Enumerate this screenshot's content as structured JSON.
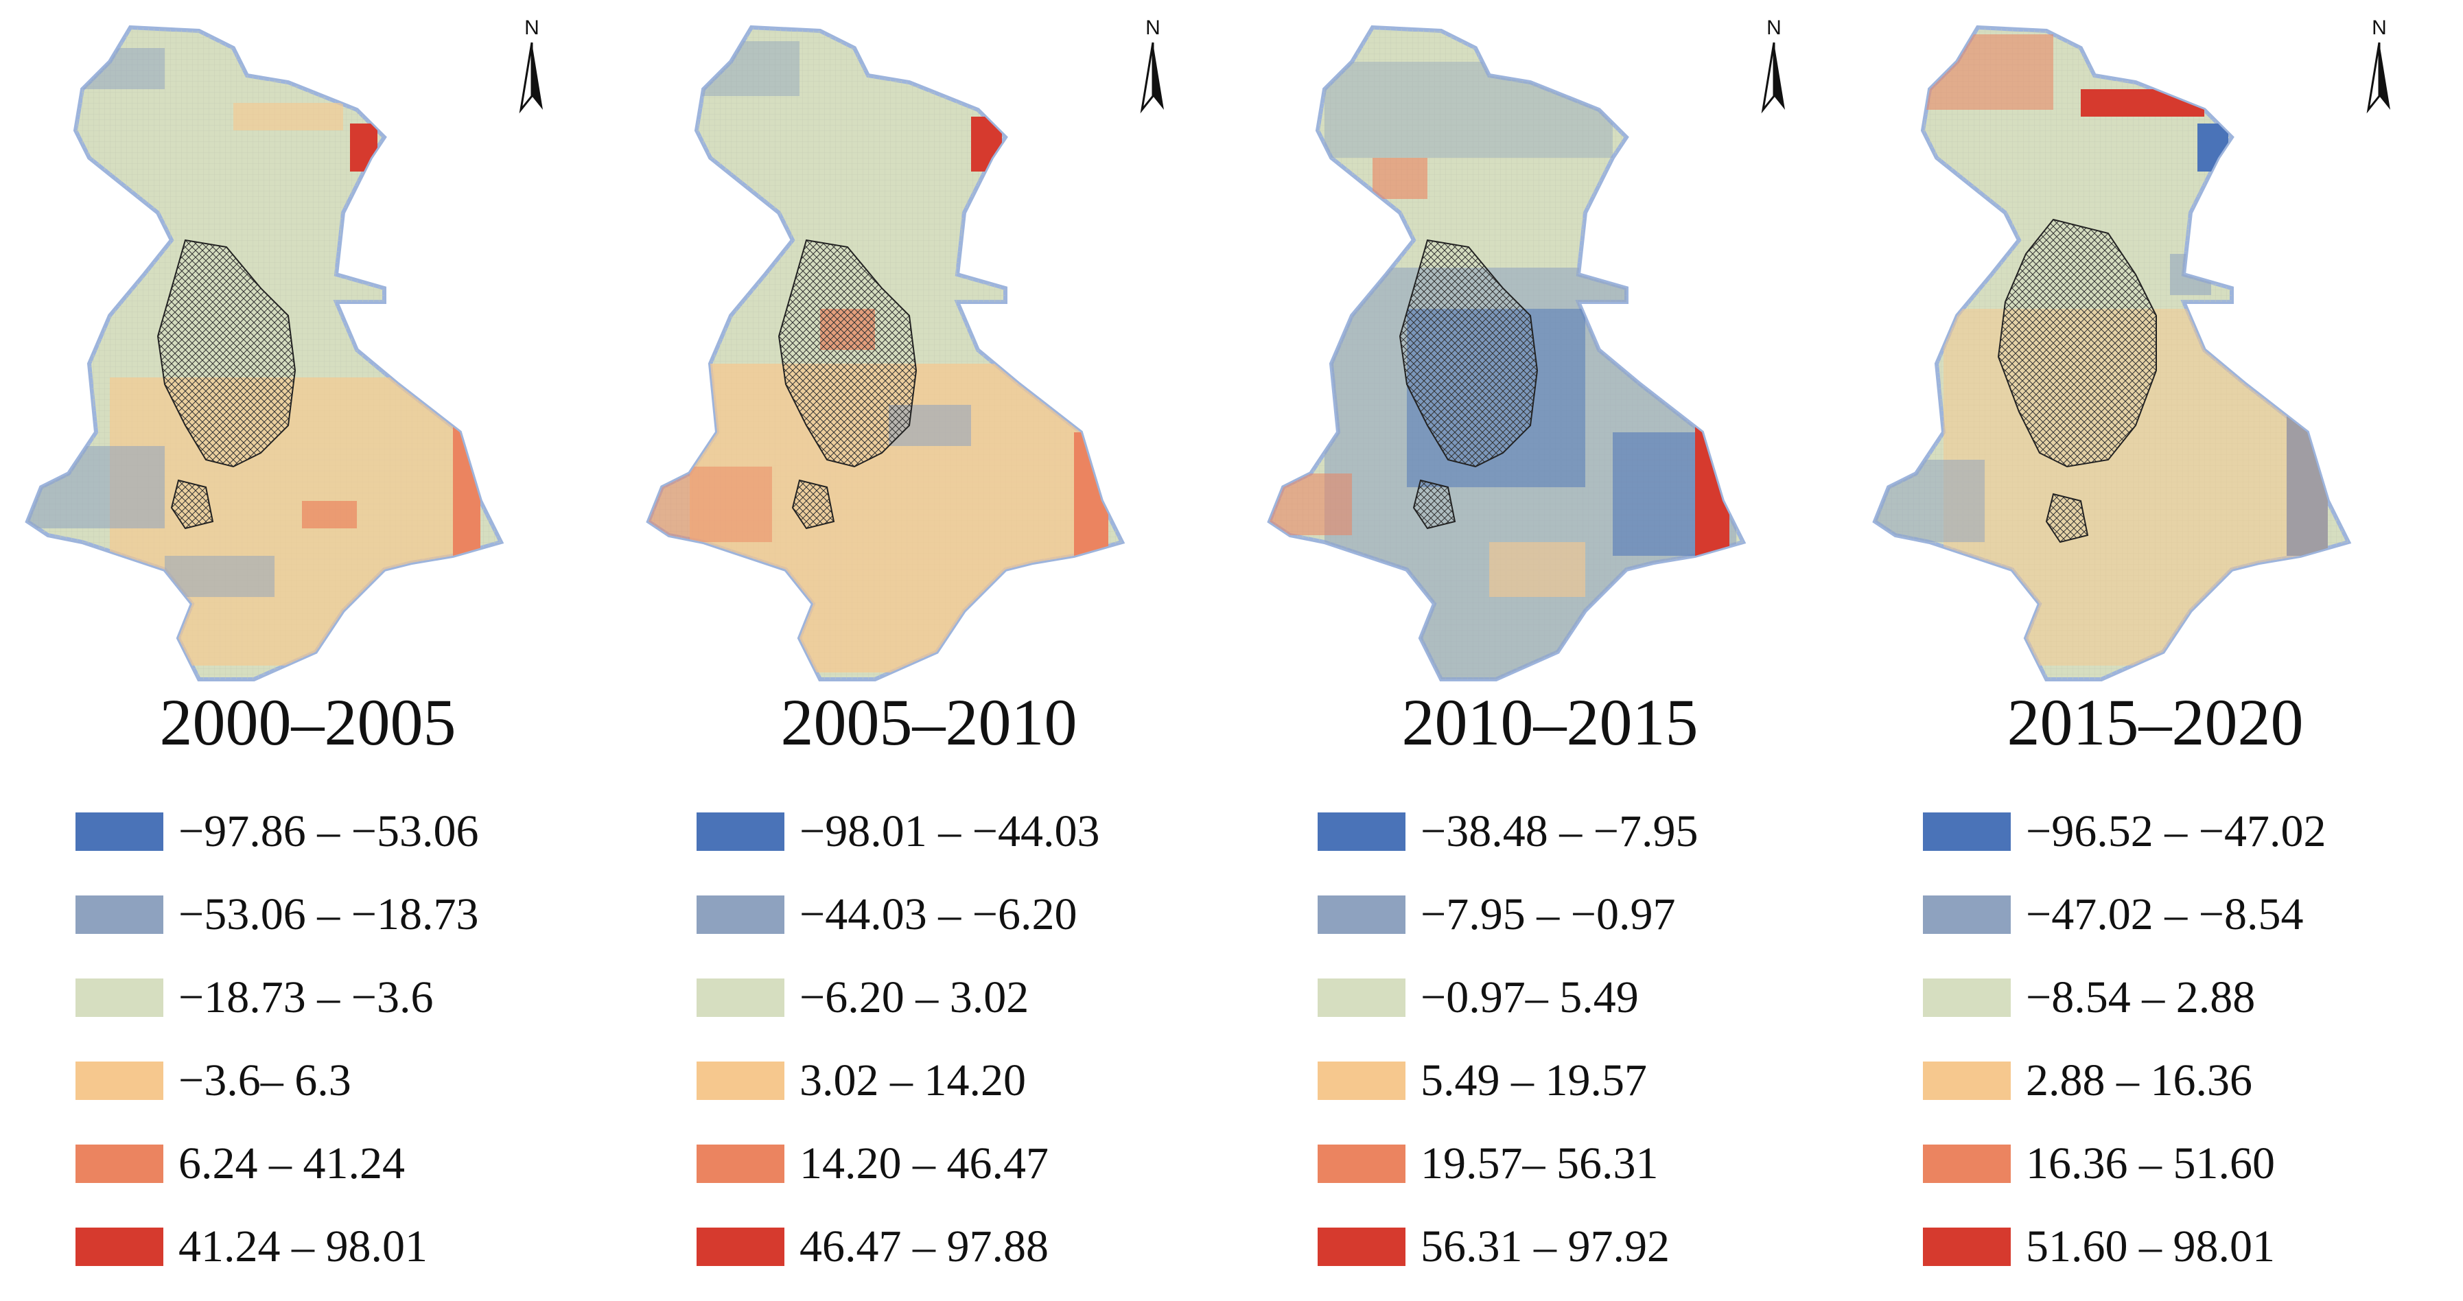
{
  "colors": {
    "class1": "#4a73b8",
    "class2": "#8ea2bf",
    "class3": "#d6dec0",
    "class4": "#f6c88e",
    "class5": "#eb8460",
    "class6": "#d63a2e",
    "outline": "#9db4dc"
  },
  "north_arrow": {
    "icon": "north-arrow-icon",
    "label": "N"
  },
  "panels": [
    {
      "period": "2000–2005",
      "legend": [
        "−97.86 – −53.06",
        "−53.06 – −18.73",
        "−18.73 – −3.6",
        "−3.6– 6.3",
        "6.24 – 41.24",
        "41.24 – 98.01"
      ]
    },
    {
      "period": "2005–2010",
      "legend": [
        "−98.01 – −44.03",
        "−44.03 – −6.20",
        "−6.20 – 3.02",
        "3.02 – 14.20",
        "14.20 – 46.47",
        "46.47 – 97.88"
      ]
    },
    {
      "period": "2010–2015",
      "legend": [
        "−38.48 – −7.95",
        "−7.95 – −0.97",
        "−0.97– 5.49",
        "5.49 – 19.57",
        "19.57– 56.31",
        "56.31 – 97.92"
      ]
    },
    {
      "period": "2015–2020",
      "legend": [
        "−96.52 – −47.02",
        "−47.02 – −8.54",
        "−8.54 – 2.88",
        "2.88 – 16.36",
        "16.36 – 51.60",
        "51.60 – 98.01"
      ]
    }
  ]
}
